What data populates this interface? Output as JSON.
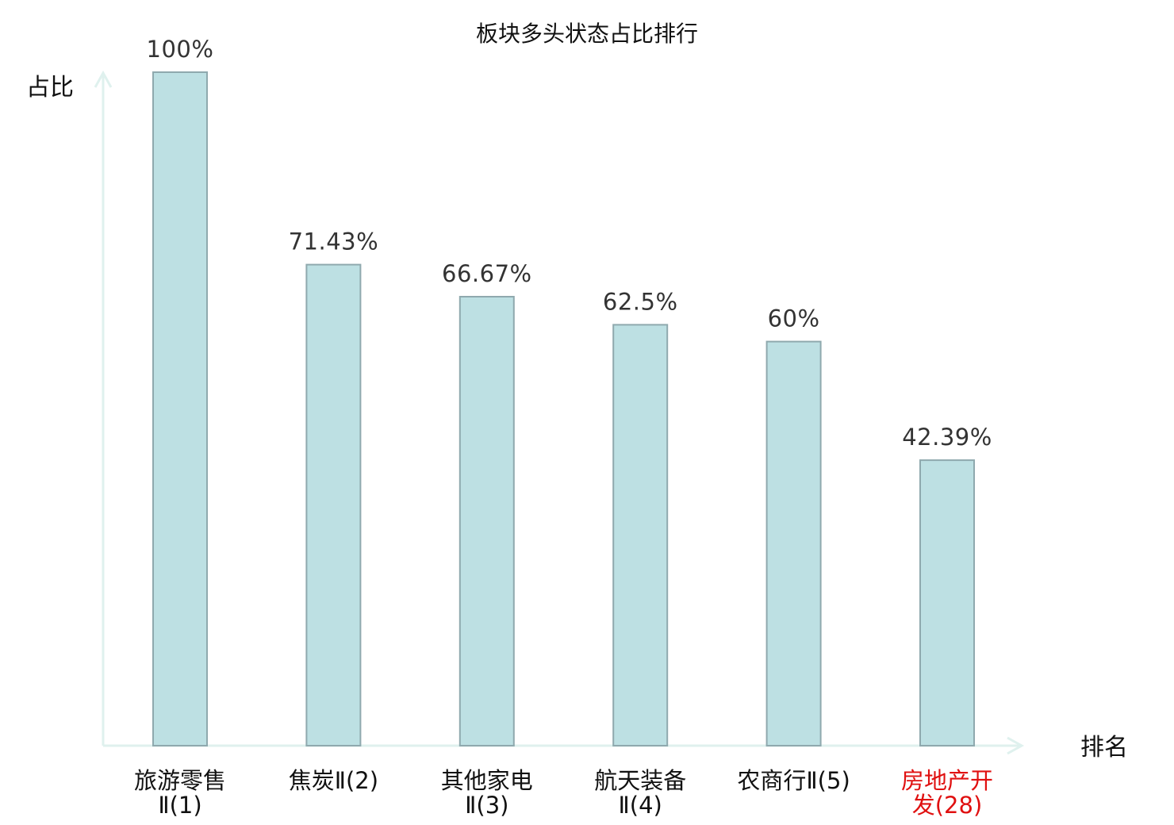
{
  "chart_data": {
    "type": "bar",
    "title": "板块多头状态占比排行",
    "xlabel": "排名",
    "ylabel": "占比",
    "ylim": [
      0,
      100
    ],
    "grid": false,
    "legend": "none",
    "categories": [
      {
        "name_line1": "旅游零售",
        "name_line2": "Ⅱ(1)",
        "highlight": false
      },
      {
        "name_line1": "焦炭Ⅱ(2)",
        "name_line2": "",
        "highlight": false
      },
      {
        "name_line1": "其他家电",
        "name_line2": "Ⅱ(3)",
        "highlight": false
      },
      {
        "name_line1": "航天装备",
        "name_line2": "Ⅱ(4)",
        "highlight": false
      },
      {
        "name_line1": "农商行Ⅱ(5)",
        "name_line2": "",
        "highlight": false
      },
      {
        "name_line1": "房地产开",
        "name_line2": "发(28)",
        "highlight": true
      }
    ],
    "values": [
      100,
      71.43,
      66.67,
      62.5,
      60,
      42.39
    ],
    "value_labels": [
      "100%",
      "71.43%",
      "66.67%",
      "62.5%",
      "60%",
      "42.39%"
    ],
    "colors": {
      "bar_fill": "#bde0e3",
      "bar_stroke": "#8fa9ae",
      "axis": "#dff1ee",
      "text": "#111111",
      "value_text": "#333333",
      "highlight": "#e01010"
    }
  }
}
